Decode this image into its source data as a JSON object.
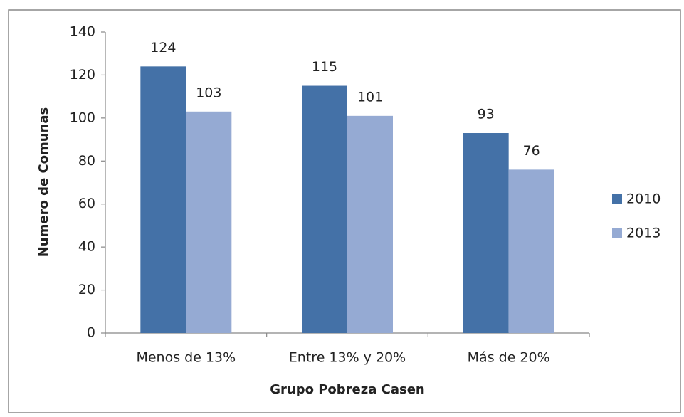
{
  "chart_data": {
    "type": "bar",
    "x_label": "Grupo Pobreza Casen",
    "y_label": "Numero de Comunas",
    "categories": [
      "Menos de 13%",
      "Entre 13% y 20%",
      "Más de 20%"
    ],
    "series": [
      {
        "name": "2010",
        "color": "#4471a7",
        "values": [
          124,
          115,
          93
        ]
      },
      {
        "name": "2013",
        "color": "#95aad3",
        "values": [
          103,
          101,
          76
        ]
      }
    ],
    "ylim": [
      0,
      140
    ],
    "yticks": [
      0,
      20,
      40,
      60,
      80,
      100,
      120,
      140
    ],
    "grid": false,
    "legend": "right",
    "data_labels": true
  }
}
